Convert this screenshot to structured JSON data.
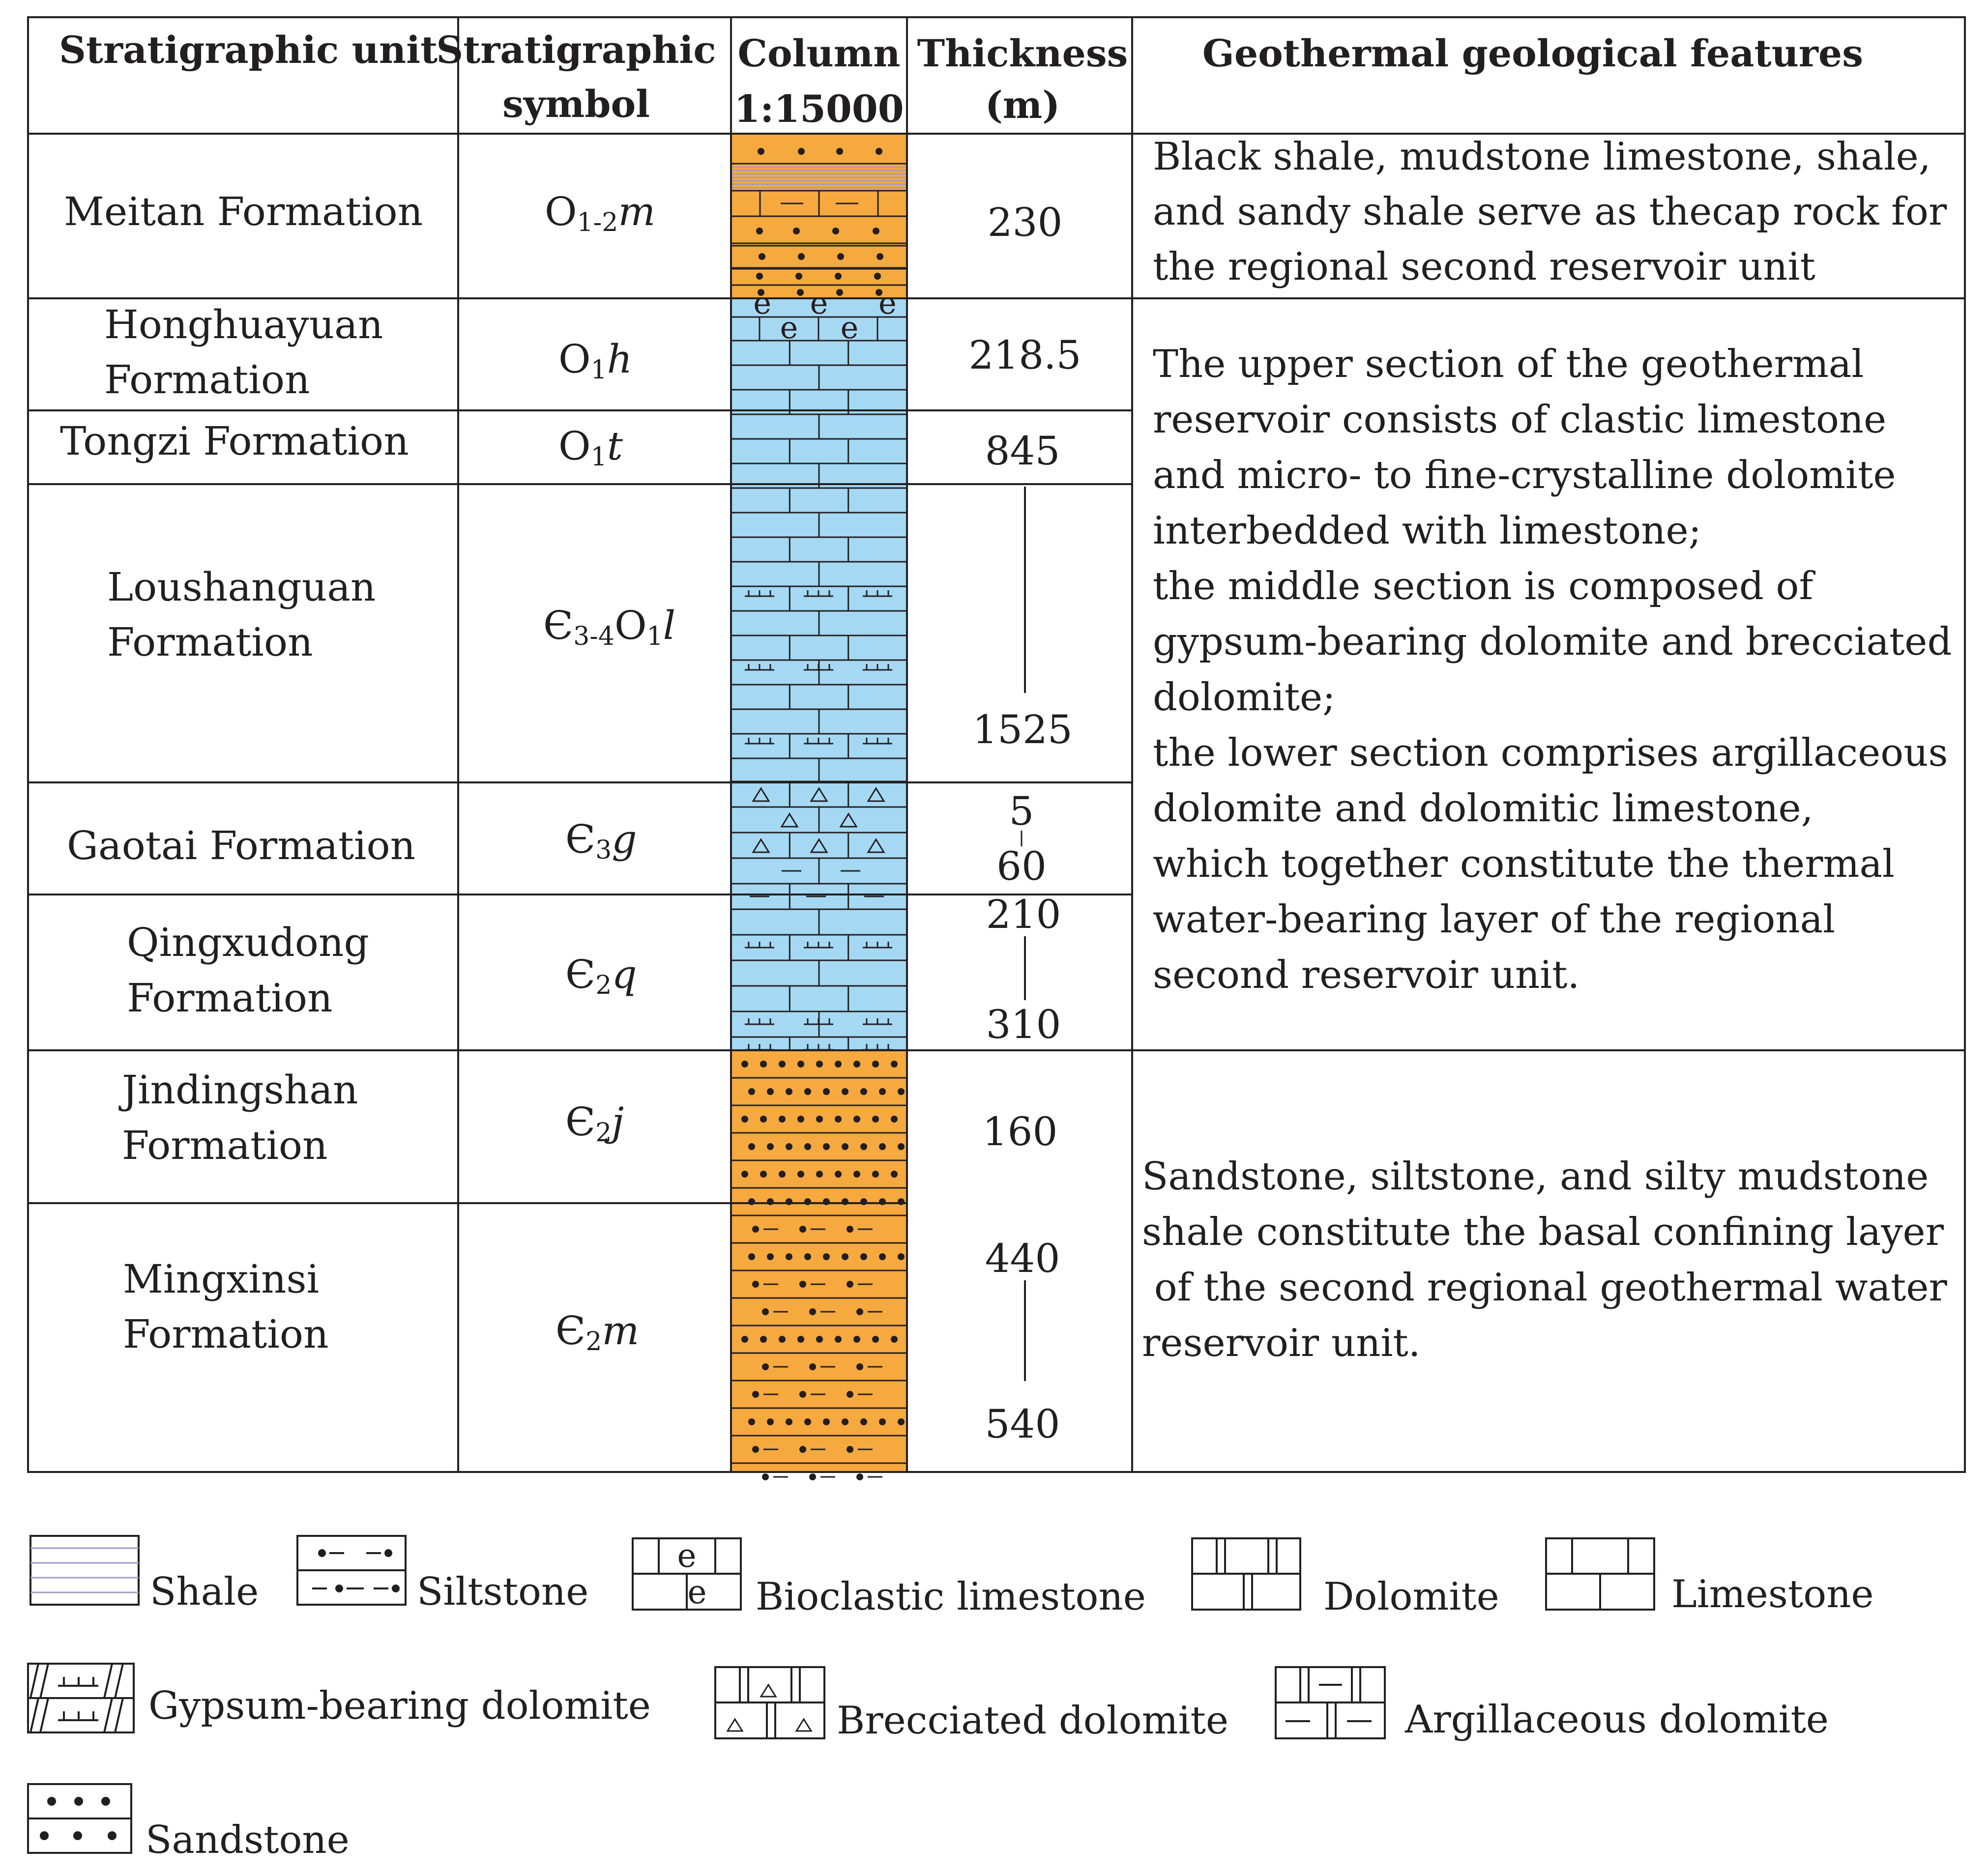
{
  "headers": {
    "unit": "Stratigraphic  unit",
    "symbol_1": "Stratigraphic",
    "symbol_2": "symbol",
    "column_1": "Column",
    "column_2": "1:15000",
    "thickness_1": "Thickness",
    "thickness_2": "(m)",
    "features": "Geothermal geological features"
  },
  "units": [
    {
      "name_lines": [
        "Meitan Formation"
      ],
      "symbol": {
        "main": "O",
        "sub": "1-2",
        "italic": "m"
      },
      "thickness": [
        "230"
      ]
    },
    {
      "name_lines": [
        "Honghuayuan",
        "Formation"
      ],
      "symbol": {
        "main": "O",
        "sub": "1",
        "italic": "h"
      },
      "thickness": [
        "218.5"
      ]
    },
    {
      "name_lines": [
        "Tongzi Formation"
      ],
      "symbol": {
        "main": "O",
        "sub": "1",
        "italic": "t"
      },
      "thickness": [
        "845"
      ]
    },
    {
      "name_lines": [
        "Loushanguan",
        "Formation"
      ],
      "symbol": {
        "main": "Є",
        "sub": "3-4",
        "main2": "O",
        "sub2": "1",
        "italic": "l"
      },
      "thickness": [
        "1525"
      ]
    },
    {
      "name_lines": [
        "Gaotai Formation"
      ],
      "symbol": {
        "main": "Є",
        "sub": "3",
        "italic": "g"
      },
      "thickness": [
        "5",
        "60"
      ]
    },
    {
      "name_lines": [
        "Qingxudong",
        "Formation"
      ],
      "symbol": {
        "main": "Є",
        "sub": "2",
        "italic": "q"
      },
      "thickness": [
        "210",
        "310"
      ]
    },
    {
      "name_lines": [
        "Jindingshan",
        "Formation"
      ],
      "symbol": {
        "main": "Є",
        "sub": "2",
        "italic": "j"
      },
      "thickness": [
        "160"
      ]
    },
    {
      "name_lines": [
        "Mingxinsi",
        "Formation"
      ],
      "symbol": {
        "main": "Є",
        "sub": "2",
        "italic": "m"
      },
      "thickness": [
        "440",
        "540"
      ]
    }
  ],
  "features": [
    [
      "Black shale, mudstone limestone, shale,",
      "and sandy shale serve as thecap rock for",
      "the regional second reservoir unit"
    ],
    [
      "The upper section of the geothermal",
      "reservoir consists of clastic limestone",
      "and micro- to fine-crystalline dolomite",
      "interbedded with limestone;",
      "the middle section is composed of",
      "gypsum-bearing dolomite and brecciated",
      "dolomite;",
      "the lower section comprises argillaceous",
      "dolomite and dolomitic limestone,",
      "which together constitute the thermal",
      "water-bearing layer of the regional",
      "second reservoir unit."
    ],
    [
      "Sandstone, siltstone, and silty mudstone",
      "shale constitute the basal confining layer",
      " of the second regional geothermal water",
      "reservoir unit."
    ]
  ],
  "legend": [
    {
      "key": "shale",
      "label": "Shale"
    },
    {
      "key": "siltstone",
      "label": "Siltstone"
    },
    {
      "key": "bioclastic",
      "label": "Bioclastic limestone"
    },
    {
      "key": "dolomite",
      "label": "Dolomite"
    },
    {
      "key": "limestone",
      "label": "Limestone"
    },
    {
      "key": "gypsum",
      "label": "Gypsum-bearing dolomite"
    },
    {
      "key": "brecciated",
      "label": "Brecciated dolomite"
    },
    {
      "key": "argillaceous",
      "label": "Argillaceous dolomite"
    },
    {
      "key": "sandstone",
      "label": "Sandstone"
    }
  ],
  "colors": {
    "sand": "#f5a93f",
    "carbonate": "#a5d8f3",
    "line": "#231f20",
    "shale_line": "#9e9ac8"
  }
}
